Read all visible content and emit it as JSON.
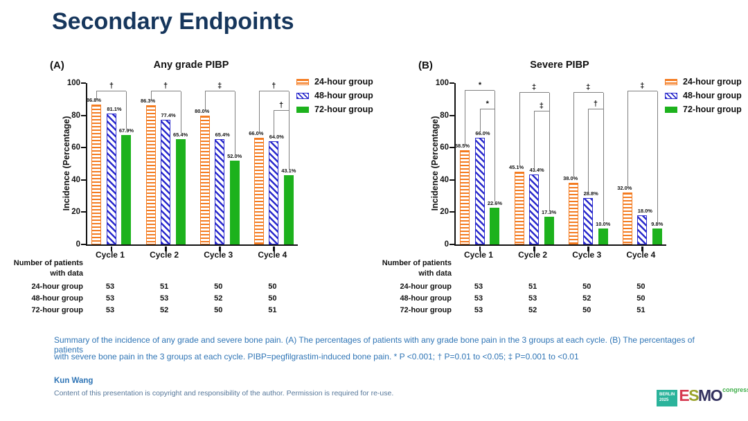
{
  "slide": {
    "title": "Secondary Endpoints",
    "caption_line1": "Summary of the incidence of any grade and severe bone pain. (A) The percentages of patients with any grade bone pain in the 3 groups at each cycle. (B) The percentages of patients",
    "caption_line2": "with severe bone pain in the 3 groups at each cycle. PIBP=pegfilgrastim-induced bone pain. * P <0.001; † P=0.01 to <0.05; ‡ P=0.001 to <0.01",
    "author": "Kun Wang",
    "copyright": "Content of this presentation is copyright and responsibility of the author. Permission is required for re-use.",
    "logo": {
      "berlin": "BERLIN",
      "year": "2025",
      "esmo_letters": [
        "E",
        "S",
        "M",
        "O"
      ],
      "congress": "congress"
    }
  },
  "colors": {
    "orange": "#f47b20",
    "blue": "#2929cc",
    "green": "#1db21d",
    "navy": "#16365c",
    "caption_blue": "#2e74b5",
    "bracket_gray": "#7f7f7f"
  },
  "chart_data": [
    {
      "type": "bar",
      "panel": "(A)",
      "title": "Any grade PIBP",
      "ylabel": "Incidence (Percentage)",
      "ylim": [
        0,
        100
      ],
      "yticks": [
        0,
        20,
        40,
        60,
        80,
        100
      ],
      "categories": [
        "Cycle 1",
        "Cycle 2",
        "Cycle 3",
        "Cycle 4"
      ],
      "series": [
        {
          "name": "24-hour group",
          "style": "orange-hstripe",
          "values": [
            86.8,
            86.3,
            80.0,
            66.0
          ]
        },
        {
          "name": "48-hour group",
          "style": "blue-dstripe",
          "values": [
            81.1,
            77.4,
            65.4,
            64.0
          ]
        },
        {
          "name": "72-hour group",
          "style": "green-solid",
          "values": [
            67.9,
            65.4,
            52.0,
            43.1
          ]
        }
      ],
      "brackets": [
        {
          "cycle": 0,
          "fromSlot": 0,
          "toSlot": 2,
          "top": 95,
          "leftEnd": 89.5,
          "rightEnd": 71.5,
          "symbol": "†"
        },
        {
          "cycle": 1,
          "fromSlot": 0,
          "toSlot": 2,
          "top": 95,
          "leftEnd": 89.0,
          "rightEnd": 69.0,
          "symbol": "†"
        },
        {
          "cycle": 2,
          "fromSlot": 0,
          "toSlot": 2,
          "top": 95,
          "leftEnd": 83.5,
          "rightEnd": 56.0,
          "symbol": "‡"
        },
        {
          "cycle": 3,
          "fromSlot": 0,
          "toSlot": 2,
          "top": 95,
          "leftEnd": 69.5,
          "rightEnd": 83.0,
          "symbol": "†"
        },
        {
          "cycle": 3,
          "fromSlot": 1,
          "toSlot": 2,
          "top": 83,
          "leftEnd": 67.5,
          "rightEnd": 47.0,
          "symbol": "†"
        }
      ],
      "table": {
        "header_line1": "Number of patients",
        "header_line2": "with data",
        "rows": [
          {
            "label": "24-hour group",
            "values": [
              53,
              51,
              50,
              50
            ]
          },
          {
            "label": "48-hour group",
            "values": [
              53,
              53,
              52,
              50
            ]
          },
          {
            "label": "72-hour group",
            "values": [
              53,
              52,
              50,
              51
            ]
          }
        ]
      }
    },
    {
      "type": "bar",
      "panel": "(B)",
      "title": "Severe PIBP",
      "ylabel": "Incidence (Percentage)",
      "ylim": [
        0,
        100
      ],
      "yticks": [
        0,
        20,
        40,
        60,
        80,
        100
      ],
      "categories": [
        "Cycle 1",
        "Cycle 2",
        "Cycle 3",
        "Cycle 4"
      ],
      "series": [
        {
          "name": "24-hour group",
          "style": "orange-hstripe",
          "values": [
            58.5,
            45.1,
            38.0,
            32.0
          ]
        },
        {
          "name": "48-hour group",
          "style": "blue-dstripe",
          "values": [
            66.0,
            43.4,
            28.8,
            18.0
          ]
        },
        {
          "name": "72-hour group",
          "style": "green-solid",
          "values": [
            22.6,
            17.3,
            10.0,
            9.8
          ]
        }
      ],
      "brackets": [
        {
          "cycle": 0,
          "fromSlot": 0,
          "toSlot": 2,
          "top": 95.5,
          "leftEnd": 62.0,
          "rightEnd": 83.5,
          "symbol": "*"
        },
        {
          "cycle": 0,
          "fromSlot": 1,
          "toSlot": 2,
          "top": 83.5,
          "leftEnd": 70.0,
          "rightEnd": 26.5,
          "symbol": "*"
        },
        {
          "cycle": 1,
          "fromSlot": 0,
          "toSlot": 2,
          "top": 94.0,
          "leftEnd": 48.5,
          "rightEnd": 82.5,
          "symbol": "‡"
        },
        {
          "cycle": 1,
          "fromSlot": 1,
          "toSlot": 2,
          "top": 82.5,
          "leftEnd": 47.0,
          "rightEnd": 21.0,
          "symbol": "‡"
        },
        {
          "cycle": 2,
          "fromSlot": 0,
          "toSlot": 2,
          "top": 94.0,
          "leftEnd": 41.5,
          "rightEnd": 83.5,
          "symbol": "‡"
        },
        {
          "cycle": 2,
          "fromSlot": 1,
          "toSlot": 2,
          "top": 83.5,
          "leftEnd": 32.5,
          "rightEnd": 14.0,
          "symbol": "†"
        },
        {
          "cycle": 3,
          "fromSlot": 0,
          "toSlot": 2,
          "top": 95.0,
          "leftEnd": 35.5,
          "rightEnd": 13.5,
          "symbol": "‡"
        }
      ],
      "table": {
        "header_line1": "Number of patients",
        "header_line2": "with data",
        "rows": [
          {
            "label": "24-hour group",
            "values": [
              53,
              51,
              50,
              50
            ]
          },
          {
            "label": "48-hour group",
            "values": [
              53,
              53,
              52,
              50
            ]
          },
          {
            "label": "72-hour group",
            "values": [
              53,
              52,
              50,
              51
            ]
          }
        ]
      }
    }
  ]
}
